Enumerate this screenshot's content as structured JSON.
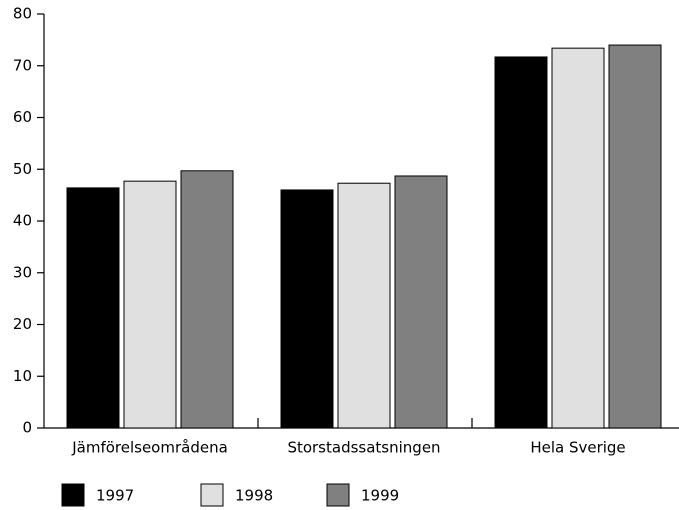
{
  "chart_data": {
    "type": "bar",
    "categories": [
      "Jämförelseområdena",
      "Storstadssatsningen",
      "Hela Sverige"
    ],
    "series": [
      {
        "name": "1997",
        "color": "#000000",
        "values": [
          46.4,
          46.0,
          71.7
        ]
      },
      {
        "name": "1998",
        "color": "#e0e0e0",
        "values": [
          47.7,
          47.3,
          73.4
        ]
      },
      {
        "name": "1999",
        "color": "#808080",
        "values": [
          49.7,
          48.7,
          74.0
        ]
      }
    ],
    "ylim": [
      0,
      80
    ],
    "yticks": [
      0,
      10,
      20,
      30,
      40,
      50,
      60,
      70,
      80
    ],
    "grid": false,
    "legend": "bottom"
  }
}
